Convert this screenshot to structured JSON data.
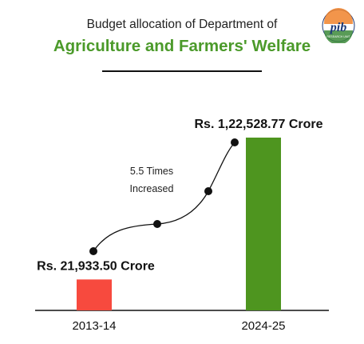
{
  "header": {
    "subtitle": "Budget allocation of Department of",
    "title": "Agriculture and Farmers' Welfare",
    "logo_text": "pib",
    "logo_subtext": "RESEARCH UNIT"
  },
  "annotation": {
    "line1": "5.5 Times",
    "line2": "Increased"
  },
  "colors": {
    "title_green": "#4b9a2a",
    "bar_red": "#f74a3e",
    "bar_green": "#4e951f",
    "saffron": "#f0822b",
    "navy": "#1d3a78"
  },
  "chart_data": {
    "type": "bar",
    "title": "Agriculture and Farmers' Welfare",
    "categories": [
      "2013-14",
      "2024-25"
    ],
    "values": [
      21933.5,
      122528.77
    ],
    "data_labels": [
      "Rs. 21,933.50 Crore",
      "Rs. 1,22,528.77 Crore"
    ],
    "bar_colors": [
      "#f74a3e",
      "#4e951f"
    ],
    "unit": "Crore",
    "xlabel": "",
    "ylabel": "",
    "ylim": [
      0,
      122528.77
    ],
    "grid": false,
    "axis_y_visible": false
  }
}
